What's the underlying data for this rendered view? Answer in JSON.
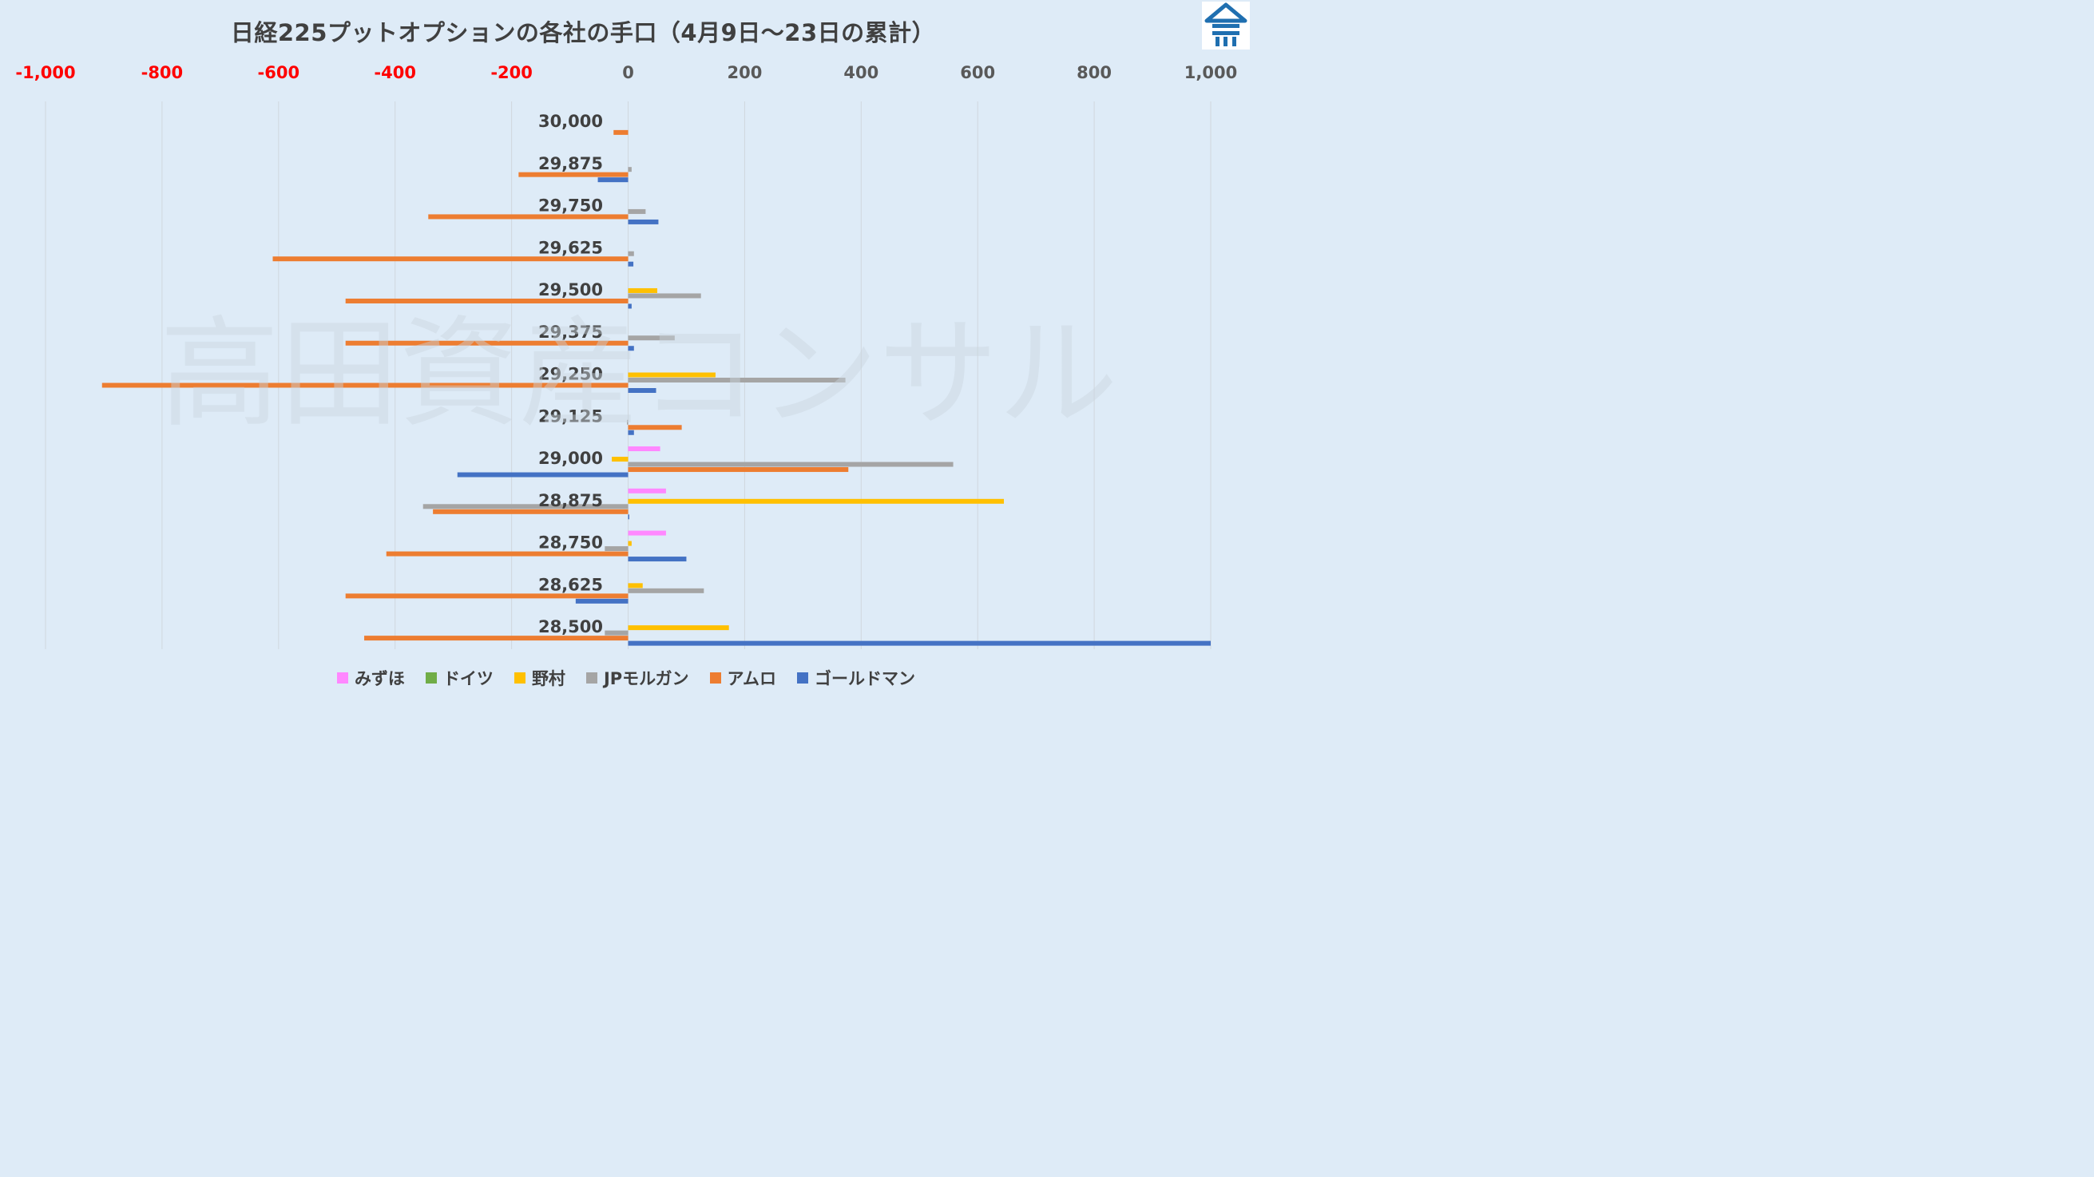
{
  "title": "日経225プットオプションの各社の手口（4月9日〜23日の累計）",
  "watermark": "高田資産コンサル",
  "colors": {
    "negative_tick": "#ff0000",
    "positive_tick": "#595959",
    "gridline": "#d0d7de",
    "background": "#deebf7",
    "logo": "#1f6fb0"
  },
  "chart_data": {
    "type": "bar",
    "orientation": "horizontal",
    "title": "日経225プットオプションの各社の手口（4月9日〜23日の累計）",
    "xlim": [
      -1000,
      1000
    ],
    "xticks": [
      -1000,
      -800,
      -600,
      -400,
      -200,
      0,
      200,
      400,
      600,
      800,
      1000
    ],
    "xtick_labels": [
      "-1,000",
      "-800",
      "-600",
      "-400",
      "-200",
      "0",
      "200",
      "400",
      "600",
      "800",
      "1,000"
    ],
    "xaxis_position": "top",
    "grid": true,
    "legend_position": "bottom",
    "categories": [
      "30,000",
      "29,875",
      "29,750",
      "29,625",
      "29,500",
      "29,375",
      "29,250",
      "29,125",
      "29,000",
      "28,875",
      "28,750",
      "28,625",
      "28,500"
    ],
    "series": [
      {
        "name": "みずほ",
        "color": "#ff88ff",
        "values": [
          0,
          0,
          0,
          0,
          0,
          0,
          0,
          0,
          55,
          65,
          65,
          0,
          0
        ]
      },
      {
        "name": "ドイツ",
        "color": "#70ad47",
        "values": [
          0,
          0,
          0,
          0,
          0,
          0,
          0,
          0,
          0,
          0,
          0,
          0,
          0
        ]
      },
      {
        "name": "野村",
        "color": "#ffc000",
        "values": [
          0,
          0,
          0,
          0,
          50,
          0,
          150,
          0,
          -28,
          645,
          6,
          25,
          173
        ]
      },
      {
        "name": "JPモルガン",
        "color": "#a5a5a5",
        "values": [
          0,
          6,
          30,
          10,
          125,
          80,
          373,
          -2,
          558,
          -352,
          -40,
          130,
          -40
        ]
      },
      {
        "name": "アムロ",
        "color": "#ed7d31",
        "values": [
          -25,
          -188,
          -343,
          -610,
          -485,
          -485,
          -903,
          92,
          378,
          -335,
          -415,
          -485,
          -453
        ]
      },
      {
        "name": "ゴールドマン",
        "color": "#4472c4",
        "values": [
          0,
          -52,
          52,
          9,
          6,
          10,
          48,
          10,
          -293,
          2,
          100,
          -90,
          1000
        ]
      }
    ]
  }
}
